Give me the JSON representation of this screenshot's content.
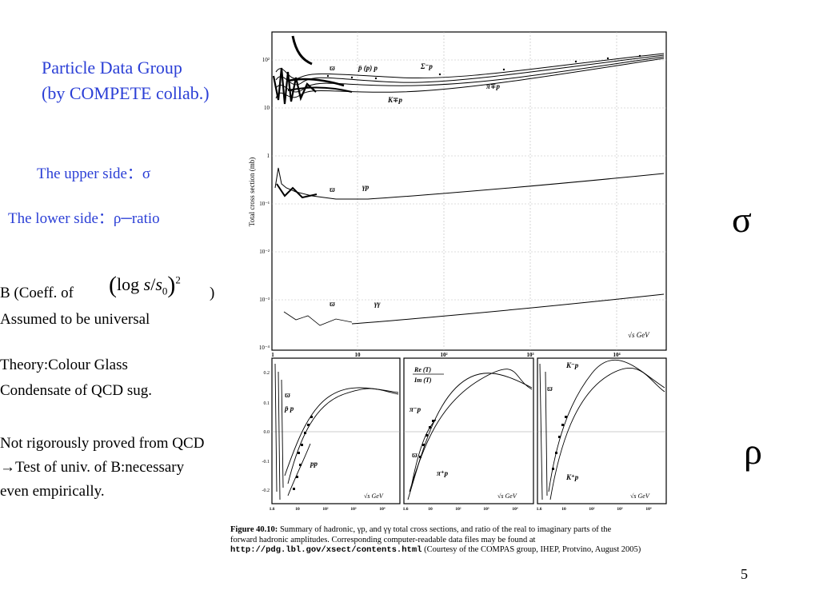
{
  "slide": {
    "title_line1": "Particle Data Group",
    "title_line2": "(by COMPETE collab.)",
    "upper_side": "The upper side：σ",
    "lower_side": "The lower side：ρ─ratio",
    "b_coeff_prefix": "B (Coeff. of",
    "b_coeff_suffix": ")",
    "b_formula_log": "log",
    "b_formula_s": "s",
    "b_formula_slash": "/",
    "b_formula_s0": "s",
    "b_formula_sub": "0",
    "b_formula_exp": "2",
    "universal": "Assumed to be universal",
    "theory_line1": "Theory:Colour Glass",
    "theory_line2": "Condensate of QCD sug.",
    "not_proved_line1": "Not rigorously proved from QCD",
    "not_proved_line2": "→Test of univ. of B:necessary",
    "not_proved_line3": "even empirically.",
    "sigma_symbol": "σ",
    "rho_symbol": "ρ",
    "page_number": "5"
  },
  "figure": {
    "top_ylabel": "Total cross section (mb)",
    "top_y_ticks": [
      "10²",
      "10",
      "1",
      "10⁻¹",
      "10⁻²",
      "10⁻³",
      "10⁻⁴"
    ],
    "top_x_ticks": [
      "1",
      "10",
      "10²",
      "10³",
      "10⁴"
    ],
    "sqrt_s_label": "√s GeV",
    "labels": {
      "pbar_p": "p̄ (p) p",
      "sigma_p": "Σ⁻p",
      "pi_p": "π∓p",
      "k_p": "K∓p",
      "gamma_p": "γp",
      "gamma_gamma": "γγ",
      "omega": "ϖ"
    },
    "rho_y_ticks": [
      "0.2",
      "0.1",
      "0.0",
      "-0.1",
      "-0.2"
    ],
    "rho_x_ticks": [
      "1.6",
      "10",
      "10²",
      "10³",
      "10⁴"
    ],
    "panel1": {
      "label_pbar": "p̄ p",
      "label_pp": "pp",
      "omega": "ϖ"
    },
    "panel2": {
      "label_re": "Re (T)",
      "label_im": "Im (T)",
      "label_pim": "π⁻p",
      "label_pip": "π⁺p",
      "omega": "ϖ"
    },
    "panel3": {
      "label_km": "K⁻p",
      "label_kp": "K⁺p",
      "omega": "ϖ"
    },
    "caption_bold": "Figure 40.10:",
    "caption_line1": " Summary of hadronic, γp, and γγ total cross sections, and ratio of the real to imaginary parts of the",
    "caption_line2": "forward hadronic amplitudes. Corresponding computer-readable data files may be found at",
    "caption_url": "http://pdg.lbl.gov/xsect/contents.html",
    "caption_line3": " (Courtesy of the COMPAS group, IHEP, Protvino, August 2005)"
  },
  "colors": {
    "accent_blue": "#2b3fd6"
  }
}
